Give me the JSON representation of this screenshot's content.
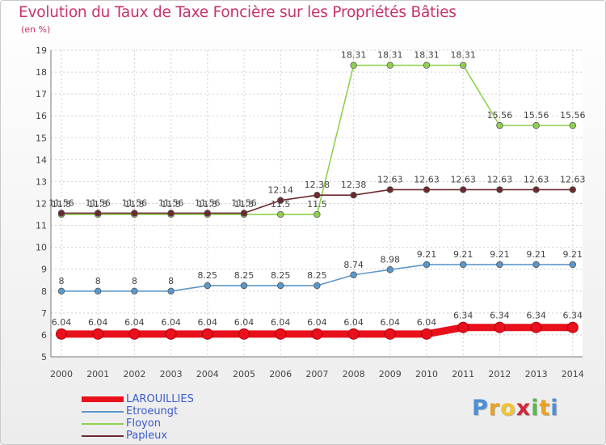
{
  "title": "Evolution du Taux de Taxe Foncière sur les Propriétés Bâties",
  "subtitle": "(en %)",
  "logo": {
    "letters": [
      "P",
      "r",
      "o",
      "x",
      "i",
      "t",
      "i"
    ],
    "colors": [
      "#4c8fd6",
      "#e8a325",
      "#f0c330",
      "#d0283a",
      "#5bb84b",
      "#e8a325",
      "#4c8fd6"
    ]
  },
  "chart_data": {
    "type": "line",
    "title": "Evolution du Taux de Taxe Foncière sur les Propriétés Bâties",
    "ylabel": "(en %)",
    "categories": [
      "2000",
      "2001",
      "2002",
      "2003",
      "2004",
      "2005",
      "2006",
      "2007",
      "2008",
      "2009",
      "2010",
      "2011",
      "2012",
      "2013",
      "2014"
    ],
    "ylim": [
      5,
      19
    ],
    "yticks": [
      "5",
      "6",
      "7",
      "8",
      "9",
      "10",
      "11",
      "12",
      "13",
      "14",
      "15",
      "16",
      "17",
      "18",
      "19"
    ],
    "grid": true,
    "legend_position": "bottom-left",
    "series": [
      {
        "name": "LAROUILLIES",
        "color": "#e8101a",
        "values": [
          6.04,
          6.04,
          6.04,
          6.04,
          6.04,
          6.04,
          6.04,
          6.04,
          6.04,
          6.04,
          6.04,
          6.34,
          6.34,
          6.34,
          6.34
        ],
        "labels": [
          "6.04",
          "6.04",
          "6.04",
          "6.04",
          "6.04",
          "6.04",
          "6.04",
          "6.04",
          "6.04",
          "6.04",
          "6.04",
          "6.34",
          "6.34",
          "6.34",
          "6.34"
        ]
      },
      {
        "name": "Etroeungt",
        "color": "#5b97c9",
        "values": [
          8,
          8,
          8,
          8,
          8.25,
          8.25,
          8.25,
          8.25,
          8.74,
          8.98,
          9.21,
          9.21,
          9.21,
          9.21,
          9.21
        ],
        "labels": [
          "8",
          "8",
          "8",
          "8",
          "8.25",
          "8.25",
          "8.25",
          "8.25",
          "8.74",
          "8.98",
          "9.21",
          "9.21",
          "9.21",
          "9.21",
          "9.21"
        ]
      },
      {
        "name": "Floyon",
        "color": "#8fd14f",
        "values": [
          11.5,
          11.5,
          11.5,
          11.5,
          11.5,
          11.5,
          11.5,
          11.5,
          18.31,
          18.31,
          18.31,
          18.31,
          15.56,
          15.56,
          15.56
        ],
        "labels": [
          "11.5",
          "11.5",
          "11.5",
          "11.5",
          "11.5",
          "11.5",
          "11.5",
          "11.5",
          "18.31",
          "18.31",
          "18.31",
          "18.31",
          "15.56",
          "15.56",
          "15.56"
        ]
      },
      {
        "name": "Papleux",
        "color": "#6b2a2e",
        "values": [
          11.56,
          11.56,
          11.56,
          11.56,
          11.56,
          11.56,
          12.14,
          12.38,
          12.38,
          12.63,
          12.63,
          12.63,
          12.63,
          12.63,
          12.63
        ],
        "labels": [
          "11.56",
          "11.56",
          "11.56",
          "11.56",
          "11.56",
          "11.56",
          "12.14",
          "12.38",
          "12.38",
          "12.63",
          "12.63",
          "12.63",
          "12.63",
          "12.63",
          "12.63"
        ]
      }
    ]
  }
}
